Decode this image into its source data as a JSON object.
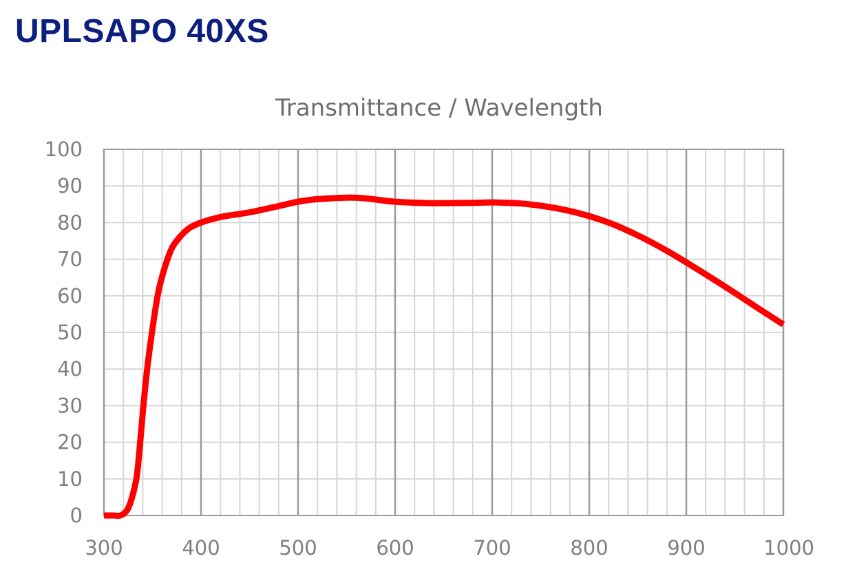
{
  "page": {
    "heading": "UPLSAPO 40XS"
  },
  "colors": {
    "heading": "#0d1f7e",
    "curve": "#ff0000",
    "grid_minor": "#d6d6d6",
    "grid_major": "#9a9a9a",
    "labels": "#808080"
  },
  "chart_data": {
    "type": "line",
    "title": "Transmittance / Wavelength",
    "xlabel": "",
    "ylabel": "",
    "xlim": [
      300,
      1000
    ],
    "ylim": [
      0,
      100
    ],
    "x_ticks": [
      300,
      400,
      500,
      600,
      700,
      800,
      900,
      1000
    ],
    "y_ticks": [
      0,
      10,
      20,
      30,
      40,
      50,
      60,
      70,
      80,
      90,
      100
    ],
    "grid": true,
    "minor_x_step": 20,
    "series": [
      {
        "color": "#ff0000",
        "points": [
          [
            300,
            0
          ],
          [
            310,
            0
          ],
          [
            317,
            0
          ],
          [
            324,
            1.5
          ],
          [
            329,
            5
          ],
          [
            334,
            11
          ],
          [
            338,
            22
          ],
          [
            341,
            31
          ],
          [
            345,
            41
          ],
          [
            350,
            51
          ],
          [
            356,
            61
          ],
          [
            363,
            68
          ],
          [
            370,
            73
          ],
          [
            378,
            76
          ],
          [
            388,
            78.5
          ],
          [
            400,
            80
          ],
          [
            420,
            81.5
          ],
          [
            450,
            82.8
          ],
          [
            480,
            84.5
          ],
          [
            500,
            85.7
          ],
          [
            520,
            86.4
          ],
          [
            550,
            86.8
          ],
          [
            570,
            86.6
          ],
          [
            600,
            85.7
          ],
          [
            640,
            85.3
          ],
          [
            680,
            85.4
          ],
          [
            700,
            85.5
          ],
          [
            730,
            85.2
          ],
          [
            760,
            84.2
          ],
          [
            790,
            82.5
          ],
          [
            820,
            80
          ],
          [
            850,
            76.5
          ],
          [
            880,
            72.3
          ],
          [
            910,
            67.5
          ],
          [
            940,
            62.5
          ],
          [
            970,
            57.3
          ],
          [
            995,
            53
          ],
          [
            1000,
            52.2
          ]
        ]
      }
    ]
  }
}
